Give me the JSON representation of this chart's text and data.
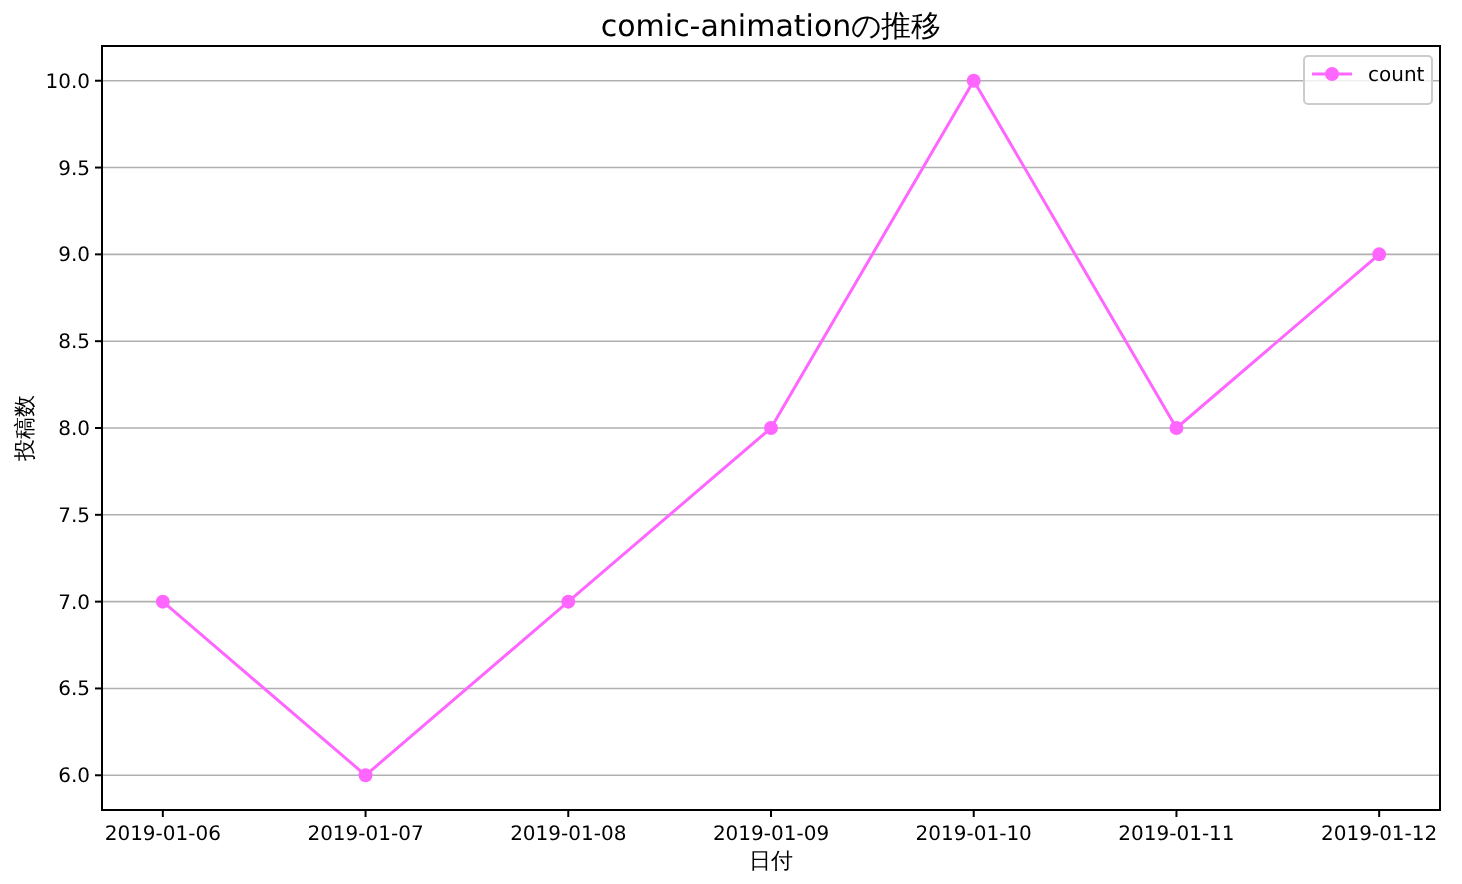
{
  "chart_data": {
    "type": "line",
    "title": "comic-animationの推移",
    "xlabel": "日付",
    "ylabel": "投稿数",
    "x": [
      "2019-01-06",
      "2019-01-07",
      "2019-01-08",
      "2019-01-09",
      "2019-01-10",
      "2019-01-11",
      "2019-01-12"
    ],
    "series": [
      {
        "name": "count",
        "color": "#ff66ff",
        "values": [
          7,
          6,
          7,
          8,
          10,
          8,
          9
        ]
      }
    ],
    "xlim": [
      "2019-01-05T16:48",
      "2019-01-12T07:12"
    ],
    "xticks": [
      "2019-01-06",
      "2019-01-07",
      "2019-01-08",
      "2019-01-09",
      "2019-01-10",
      "2019-01-11",
      "2019-01-12"
    ],
    "ylim": [
      5.8,
      10.2
    ],
    "yticks": [
      {
        "value": 6,
        "label": "6.0"
      },
      {
        "value": 6.5,
        "label": "6.5"
      },
      {
        "value": 7,
        "label": "7.0"
      },
      {
        "value": 7.5,
        "label": "7.5"
      },
      {
        "value": 8,
        "label": "8.0"
      },
      {
        "value": 8.5,
        "label": "8.5"
      },
      {
        "value": 9,
        "label": "9.0"
      },
      {
        "value": 9.5,
        "label": "9.5"
      },
      {
        "value": 10,
        "label": "10.0"
      }
    ],
    "grid": "y",
    "legend": "top right",
    "marker": "circle",
    "line_style": "solid"
  }
}
